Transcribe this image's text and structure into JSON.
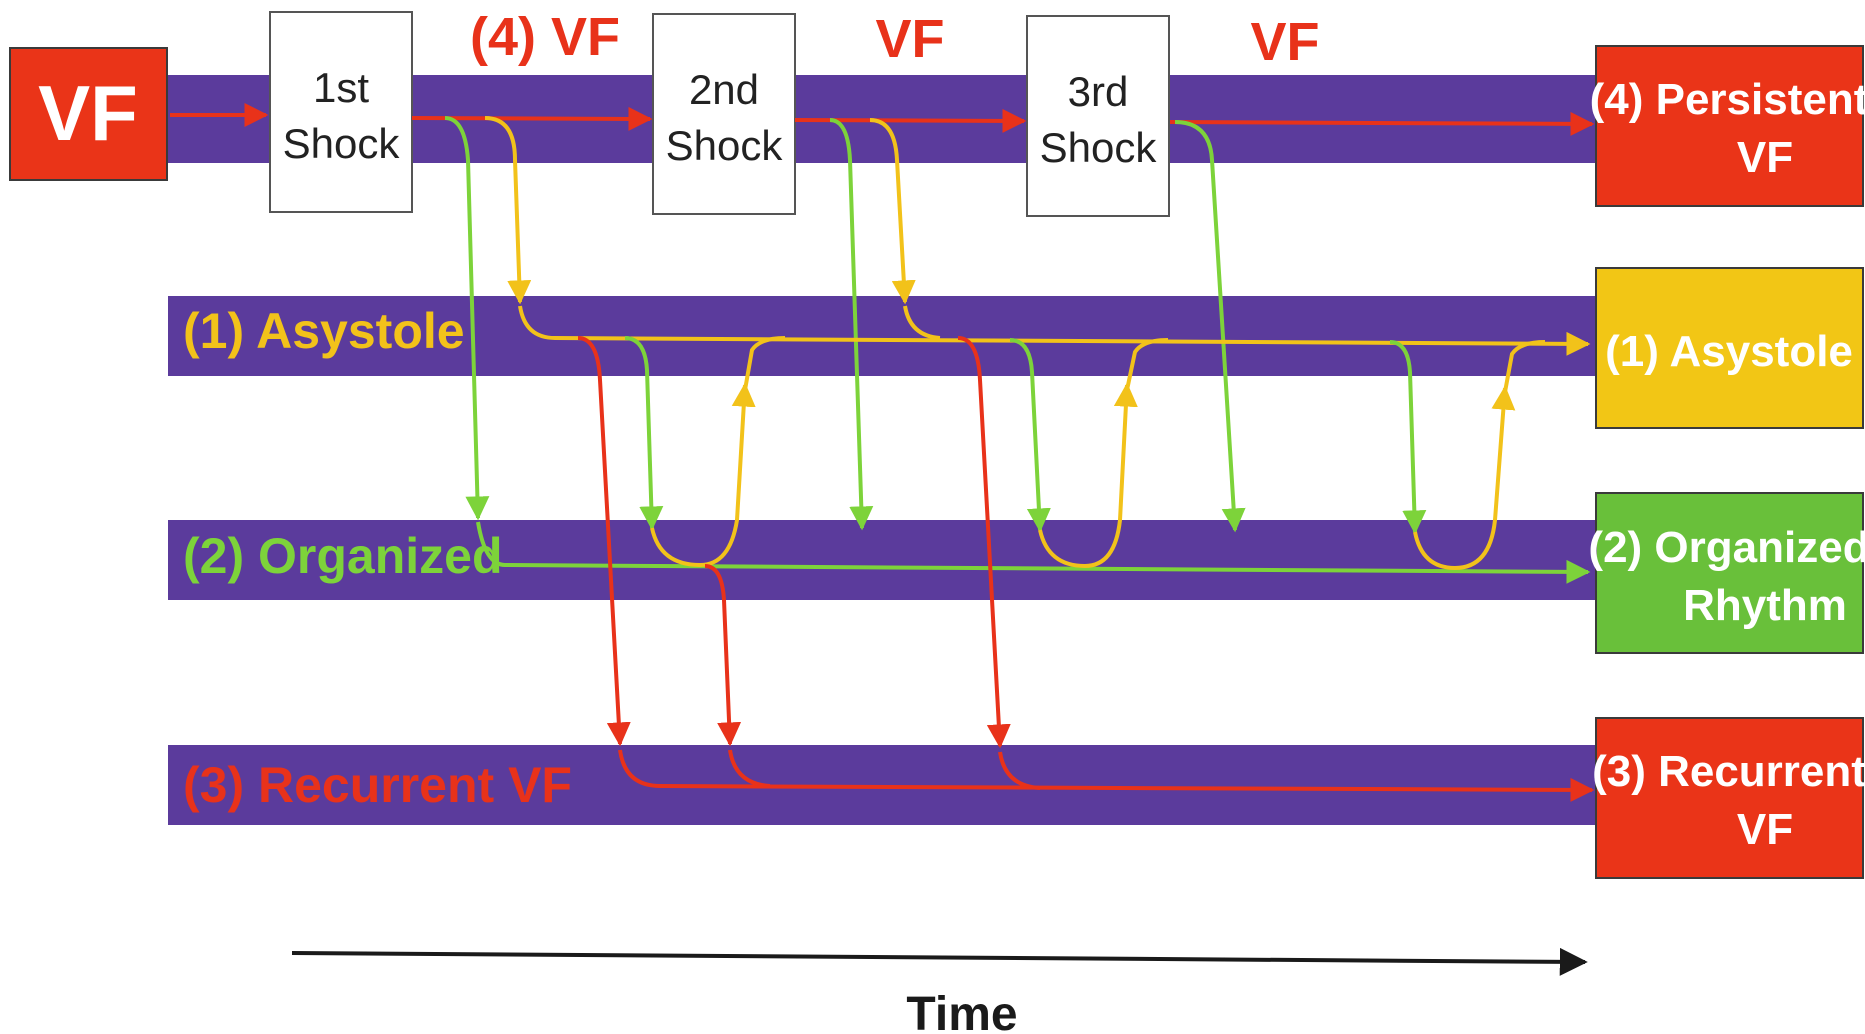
{
  "start_box": {
    "label": "VF"
  },
  "shocks": [
    {
      "line1": "1st",
      "line2": "Shock"
    },
    {
      "line1": "2nd",
      "line2": "Shock"
    },
    {
      "line1": "3rd",
      "line2": "Shock"
    }
  ],
  "interval_labels": [
    "(4) VF",
    "VF",
    "VF"
  ],
  "lanes": {
    "asystole": "(1) Asystole",
    "organized": "(2) Organized",
    "recurrent": "(3) Recurrent VF"
  },
  "outcomes": {
    "persistent": {
      "line1": "(4) Persistent",
      "line2": "VF"
    },
    "asystole": {
      "line1": "(1) Asystole"
    },
    "organized": {
      "line1": "(2) Organized",
      "line2": "Rhythm"
    },
    "recurrent": {
      "line1": "(3) Recurrent",
      "line2": "VF"
    }
  },
  "time_axis": {
    "label": "Time"
  },
  "colors": {
    "lane": "#5b3b9c",
    "vf_red": "#ea3418",
    "asystole_yellow": "#f2c615",
    "organized_green": "#69c03a"
  }
}
